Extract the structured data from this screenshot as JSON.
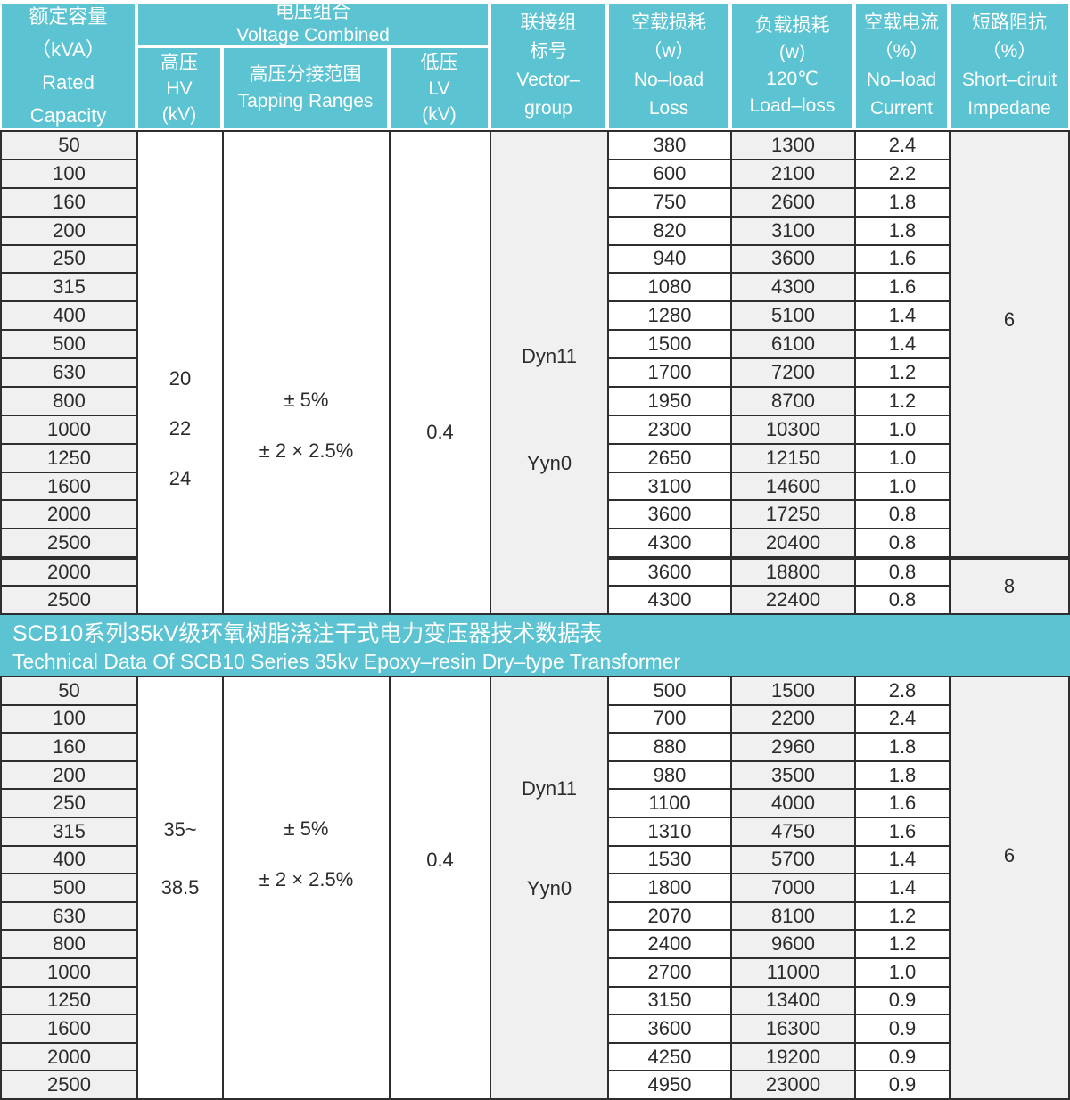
{
  "header": {
    "rated_capacity": "额定容量\n（kVA）\nRated  Capacity",
    "voltage_combined": "电压组合\nVoltage Combined",
    "hv": "高压\nHV\n(kV)",
    "tapping_ranges": "高压分接范围\nTapping Ranges",
    "lv": "低压\nLV\n(kV)",
    "vector_group": "联接组\n标号\nVector–\ngroup",
    "no_load_loss": "空载损耗\n（w）\nNo–load\nLoss",
    "load_loss": "负载损耗\n(w)\n120℃\nLoad–loss",
    "no_load_current": "空载电流\n（%）\nNo–load\nCurrent",
    "short_circuit_impedance": "短路阻抗\n（%）\nShort–ciruit\nImpedane"
  },
  "banner": {
    "line1": "SCB10系列35kV级环氧树脂浇注干式电力变压器技术数据表",
    "line2": "Technical Data Of SCB10 Series 35kv Epoxy–resin Dry–type Transformer"
  },
  "colors": {
    "teal": "#5bc3d1",
    "cell_gray": "#f0f0f0",
    "border_dark": "#2e2e2e",
    "text_dark": "#2b2b2b"
  },
  "sections": [
    {
      "hv": "20\n22\n24",
      "tapping": "± 5%\n± 2 × 2.5%",
      "lv": "0.4",
      "vector": "Dyn11\nYyn0",
      "group_breaks": [
        15
      ],
      "impedance_groups": [
        {
          "value": "6",
          "rows": 15
        },
        {
          "value": "8",
          "rows": 2
        }
      ],
      "rows": [
        {
          "kva": "50",
          "noload": "380",
          "load": "1300",
          "current": "2.4"
        },
        {
          "kva": "100",
          "noload": "600",
          "load": "2100",
          "current": "2.2"
        },
        {
          "kva": "160",
          "noload": "750",
          "load": "2600",
          "current": "1.8"
        },
        {
          "kva": "200",
          "noload": "820",
          "load": "3100",
          "current": "1.8"
        },
        {
          "kva": "250",
          "noload": "940",
          "load": "3600",
          "current": "1.6"
        },
        {
          "kva": "315",
          "noload": "1080",
          "load": "4300",
          "current": "1.6"
        },
        {
          "kva": "400",
          "noload": "1280",
          "load": "5100",
          "current": "1.4"
        },
        {
          "kva": "500",
          "noload": "1500",
          "load": "6100",
          "current": "1.4"
        },
        {
          "kva": "630",
          "noload": "1700",
          "load": "7200",
          "current": "1.2"
        },
        {
          "kva": "800",
          "noload": "1950",
          "load": "8700",
          "current": "1.2"
        },
        {
          "kva": "1000",
          "noload": "2300",
          "load": "10300",
          "current": "1.0"
        },
        {
          "kva": "1250",
          "noload": "2650",
          "load": "12150",
          "current": "1.0"
        },
        {
          "kva": "1600",
          "noload": "3100",
          "load": "14600",
          "current": "1.0"
        },
        {
          "kva": "2000",
          "noload": "3600",
          "load": "17250",
          "current": "0.8"
        },
        {
          "kva": "2500",
          "noload": "4300",
          "load": "20400",
          "current": "0.8"
        },
        {
          "kva": "2000",
          "noload": "3600",
          "load": "18800",
          "current": "0.8"
        },
        {
          "kva": "2500",
          "noload": "4300",
          "load": "22400",
          "current": "0.8"
        }
      ]
    },
    {
      "hv": "35~\n38.5",
      "tapping": "± 5%\n± 2 × 2.5%",
      "lv": "0.4",
      "vector": "Dyn11\nYyn0",
      "group_breaks": [],
      "impedance_groups": [
        {
          "value": "6",
          "rows": 15
        }
      ],
      "rows": [
        {
          "kva": "50",
          "noload": "500",
          "load": "1500",
          "current": "2.8"
        },
        {
          "kva": "100",
          "noload": "700",
          "load": "2200",
          "current": "2.4"
        },
        {
          "kva": "160",
          "noload": "880",
          "load": "2960",
          "current": "1.8"
        },
        {
          "kva": "200",
          "noload": "980",
          "load": "3500",
          "current": "1.8"
        },
        {
          "kva": "250",
          "noload": "1100",
          "load": "4000",
          "current": "1.6"
        },
        {
          "kva": "315",
          "noload": "1310",
          "load": "4750",
          "current": "1.6"
        },
        {
          "kva": "400",
          "noload": "1530",
          "load": "5700",
          "current": "1.4"
        },
        {
          "kva": "500",
          "noload": "1800",
          "load": "7000",
          "current": "1.4"
        },
        {
          "kva": "630",
          "noload": "2070",
          "load": "8100",
          "current": "1.2"
        },
        {
          "kva": "800",
          "noload": "2400",
          "load": "9600",
          "current": "1.2"
        },
        {
          "kva": "1000",
          "noload": "2700",
          "load": "11000",
          "current": "1.0"
        },
        {
          "kva": "1250",
          "noload": "3150",
          "load": "13400",
          "current": "0.9"
        },
        {
          "kva": "1600",
          "noload": "3600",
          "load": "16300",
          "current": "0.9"
        },
        {
          "kva": "2000",
          "noload": "4250",
          "load": "19200",
          "current": "0.9"
        },
        {
          "kva": "2500",
          "noload": "4950",
          "load": "23000",
          "current": "0.9"
        }
      ]
    }
  ]
}
